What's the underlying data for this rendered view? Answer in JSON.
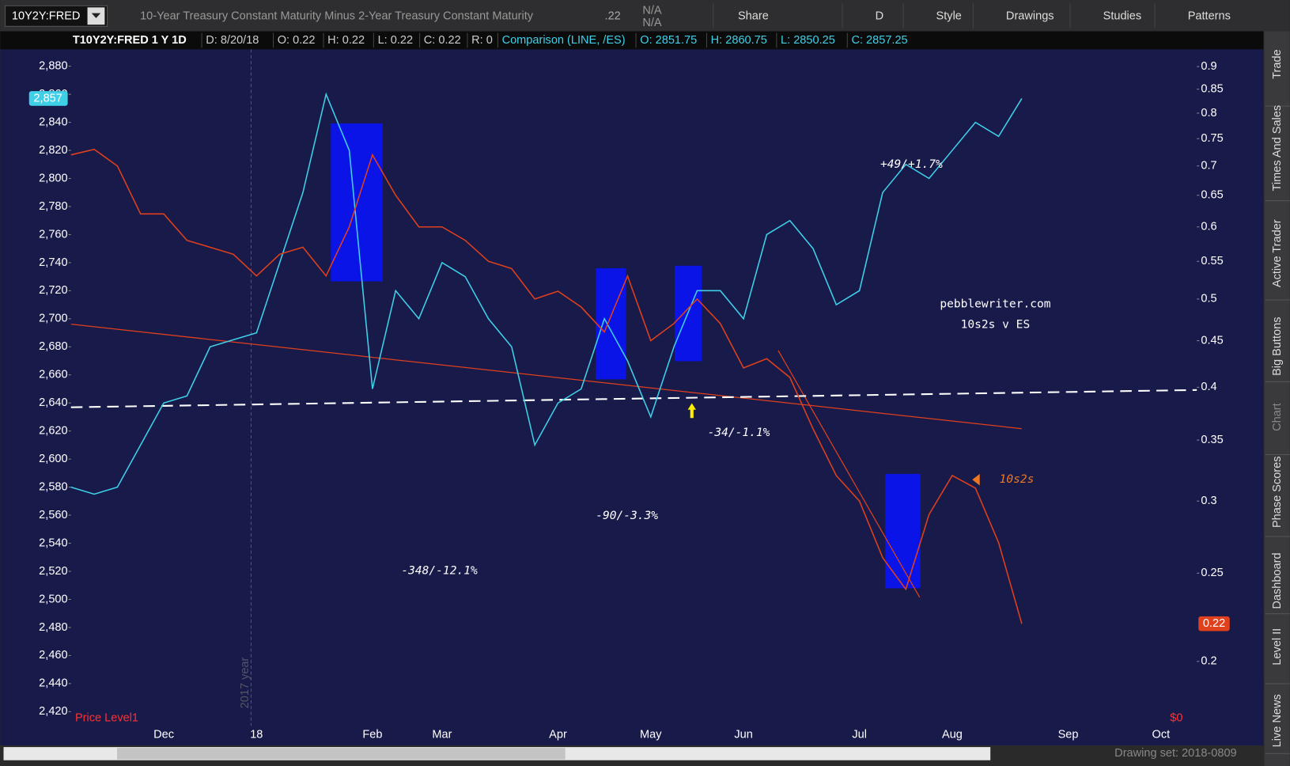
{
  "toolbar": {
    "symbol": "10Y2Y:FRED",
    "description": "10-Year Treasury Constant Maturity Minus 2-Year Treasury Constant Maturity",
    "last": ".22",
    "change": "N/A",
    "percent": "N/A",
    "buttons": [
      "Share",
      "D",
      "Style",
      "Drawings",
      "Studies",
      "Patterns"
    ]
  },
  "info_bar": [
    "T10Y2Y:FRED 1 Y 1D",
    "D: 8/20/18",
    "O: 0.22",
    "H: 0.22",
    "L: 0.22",
    "C: 0.22",
    "R: 0",
    "Comparison (LINE, /ES)",
    "O: 2851.75",
    "H: 2860.75",
    "L: 2850.25",
    "C: 2857.25"
  ],
  "side_tabs": [
    "Trade",
    "Times And Sales",
    "Active Trader",
    "Big Buttons",
    "Chart",
    "Phase Scores",
    "Dashboard",
    "Level II",
    "Live News"
  ],
  "footer": {
    "drawing_set": "Drawing set: 2018-0809"
  },
  "chart_data": {
    "type": "line",
    "categories": [
      null,
      null,
      null,
      null,
      "Dec",
      null,
      null,
      null,
      "18",
      null,
      null,
      null,
      null,
      "Feb",
      null,
      null,
      "Mar",
      null,
      null,
      null,
      null,
      "Apr",
      null,
      null,
      null,
      "May",
      null,
      null,
      null,
      "Jun",
      null,
      null,
      null,
      null,
      "Jul",
      null,
      null,
      null,
      "Aug",
      null,
      null,
      null,
      null,
      "Sep",
      null,
      null,
      null,
      "Oct",
      null
    ],
    "series": [
      {
        "name": "/ES",
        "color": "#3fd0e8",
        "axis": "y",
        "last_value_label": "2,857",
        "values": [
          2580,
          2575,
          2580,
          2610,
          2640,
          2645,
          2680,
          2685,
          2690,
          2740,
          2790,
          2860,
          2820,
          2650,
          2720,
          2700,
          2740,
          2730,
          2700,
          2680,
          2610,
          2640,
          2650,
          2700,
          2670,
          2630,
          2680,
          2720,
          2720,
          2700,
          2760,
          2770,
          2750,
          2710,
          2720,
          2790,
          2810,
          2800,
          2820,
          2840,
          2830,
          2857,
          null,
          null,
          null,
          null,
          null,
          null,
          null
        ]
      },
      {
        "name": "10s2s",
        "color": "#e0401c",
        "axis": "y2",
        "last_value_label": "0.22",
        "values": [
          0.72,
          0.73,
          0.7,
          0.62,
          0.62,
          0.58,
          0.57,
          0.56,
          0.53,
          0.56,
          0.57,
          0.53,
          0.6,
          0.72,
          0.65,
          0.6,
          0.6,
          0.58,
          0.55,
          0.54,
          0.5,
          0.51,
          0.49,
          0.46,
          0.53,
          0.45,
          0.47,
          0.5,
          0.47,
          0.42,
          0.43,
          0.41,
          0.36,
          0.32,
          0.3,
          0.26,
          0.24,
          0.29,
          0.32,
          0.31,
          0.27,
          0.22,
          null,
          null,
          null,
          null,
          null,
          null,
          null
        ]
      }
    ],
    "ylim": [
      2410,
      2892
    ],
    "yticks": [
      {
        "value": 2420,
        "label": "2,420"
      },
      {
        "value": 2440,
        "label": "2,440"
      },
      {
        "value": 2460,
        "label": "2,460"
      },
      {
        "value": 2480,
        "label": "2,480"
      },
      {
        "value": 2500,
        "label": "2,500"
      },
      {
        "value": 2520,
        "label": "2,520"
      },
      {
        "value": 2540,
        "label": "2,540"
      },
      {
        "value": 2560,
        "label": "2,560"
      },
      {
        "value": 2580,
        "label": "2,580"
      },
      {
        "value": 2600,
        "label": "2,600"
      },
      {
        "value": 2620,
        "label": "2,620"
      },
      {
        "value": 2640,
        "label": "2,640"
      },
      {
        "value": 2660,
        "label": "2,660"
      },
      {
        "value": 2680,
        "label": "2,680"
      },
      {
        "value": 2700,
        "label": "2,700"
      },
      {
        "value": 2720,
        "label": "2,720"
      },
      {
        "value": 2740,
        "label": "2,740"
      },
      {
        "value": 2760,
        "label": "2,760"
      },
      {
        "value": 2780,
        "label": "2,780"
      },
      {
        "value": 2800,
        "label": "2,800"
      },
      {
        "value": 2820,
        "label": "2,820"
      },
      {
        "value": 2840,
        "label": "2,840"
      },
      {
        "value": 2860,
        "label": "2,860"
      },
      {
        "value": 2880,
        "label": "2,880"
      }
    ],
    "y2lim": [
      0.17,
      0.94
    ],
    "y2ticks": [
      0.2,
      0.25,
      0.3,
      0.35,
      0.4,
      0.45,
      0.5,
      0.55,
      0.6,
      0.65,
      0.7,
      0.75,
      0.8,
      0.85,
      0.9
    ],
    "y2_log": true,
    "grid": false,
    "annotations": [
      "+49/+1.7%",
      "-34/-1.1%",
      "-90/-3.3%",
      "-348/-12.1%",
      "pebblewriter.com",
      "10s2s v ES",
      "10s2s",
      "Price Level1",
      "$0",
      "2017 year"
    ]
  }
}
